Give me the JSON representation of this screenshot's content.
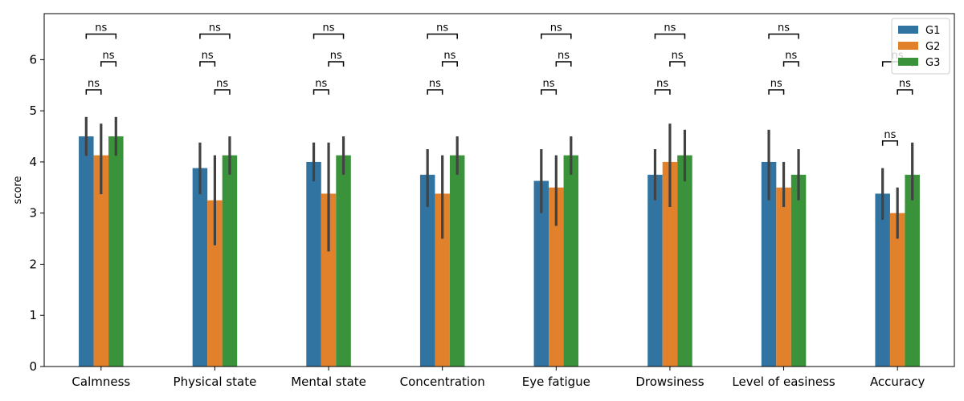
{
  "chart_data": {
    "type": "bar",
    "categories": [
      "Calmness",
      "Physical state",
      "Mental state",
      "Concentration",
      "Eye fatigue",
      "Drowsiness",
      "Level of easiness",
      "Accuracy"
    ],
    "series": [
      {
        "name": "G1",
        "color": "#3274a1",
        "values": [
          4.5,
          3.88,
          4.0,
          3.75,
          3.63,
          3.75,
          4.0,
          3.38
        ],
        "error_bars": [
          [
            4.12,
            4.88
          ],
          [
            3.37,
            4.38
          ],
          [
            3.62,
            4.38
          ],
          [
            3.12,
            4.25
          ],
          [
            3.0,
            4.25
          ],
          [
            3.25,
            4.25
          ],
          [
            3.25,
            4.63
          ],
          [
            2.87,
            3.88
          ]
        ]
      },
      {
        "name": "G2",
        "color": "#e1812c",
        "values": [
          4.13,
          3.25,
          3.38,
          3.38,
          3.5,
          4.0,
          3.5,
          3.0
        ],
        "error_bars": [
          [
            3.37,
            4.75
          ],
          [
            2.37,
            4.13
          ],
          [
            2.25,
            4.38
          ],
          [
            2.5,
            4.13
          ],
          [
            2.75,
            4.13
          ],
          [
            3.12,
            4.75
          ],
          [
            3.12,
            4.0
          ],
          [
            2.5,
            3.5
          ]
        ]
      },
      {
        "name": "G3",
        "color": "#3a923a",
        "values": [
          4.5,
          4.13,
          4.13,
          4.13,
          4.13,
          4.13,
          3.75,
          3.75
        ],
        "error_bars": [
          [
            4.12,
            4.88
          ],
          [
            3.75,
            4.5
          ],
          [
            3.75,
            4.5
          ],
          [
            3.75,
            4.5
          ],
          [
            3.75,
            4.5
          ],
          [
            3.62,
            4.63
          ],
          [
            3.25,
            4.25
          ],
          [
            3.25,
            4.38
          ]
        ]
      }
    ],
    "significance": {
      "label": "ns",
      "brackets": [
        {
          "category": 0,
          "pair": "G1-G2",
          "y": 5.41
        },
        {
          "category": 0,
          "pair": "G2-G3",
          "y": 5.96
        },
        {
          "category": 0,
          "pair": "G1-G3",
          "y": 6.5
        },
        {
          "category": 1,
          "pair": "G2-G3",
          "y": 5.41
        },
        {
          "category": 1,
          "pair": "G1-G2",
          "y": 5.96
        },
        {
          "category": 1,
          "pair": "G1-G3",
          "y": 6.5
        },
        {
          "category": 2,
          "pair": "G1-G2",
          "y": 5.41
        },
        {
          "category": 2,
          "pair": "G2-G3",
          "y": 5.96
        },
        {
          "category": 2,
          "pair": "G1-G3",
          "y": 6.5
        },
        {
          "category": 3,
          "pair": "G1-G2",
          "y": 5.41
        },
        {
          "category": 3,
          "pair": "G2-G3",
          "y": 5.96
        },
        {
          "category": 3,
          "pair": "G1-G3",
          "y": 6.5
        },
        {
          "category": 4,
          "pair": "G1-G2",
          "y": 5.41
        },
        {
          "category": 4,
          "pair": "G2-G3",
          "y": 5.96
        },
        {
          "category": 4,
          "pair": "G1-G3",
          "y": 6.5
        },
        {
          "category": 5,
          "pair": "G1-G2",
          "y": 5.41
        },
        {
          "category": 5,
          "pair": "G2-G3",
          "y": 5.96
        },
        {
          "category": 5,
          "pair": "G1-G3",
          "y": 6.5
        },
        {
          "category": 6,
          "pair": "G1-G2",
          "y": 5.41
        },
        {
          "category": 6,
          "pair": "G2-G3",
          "y": 5.96
        },
        {
          "category": 6,
          "pair": "G1-G3",
          "y": 6.5
        },
        {
          "category": 7,
          "pair": "G1-G2",
          "y": 4.41
        },
        {
          "category": 7,
          "pair": "G2-G3",
          "y": 5.41
        },
        {
          "category": 7,
          "pair": "G1-G3",
          "y": 5.96
        }
      ]
    },
    "title": "",
    "xlabel": "",
    "ylabel": "score",
    "ylim": [
      0,
      6.9
    ],
    "yticks": [
      0,
      1,
      2,
      3,
      4,
      5,
      6
    ],
    "grid": false,
    "legend_position": "top-right"
  }
}
